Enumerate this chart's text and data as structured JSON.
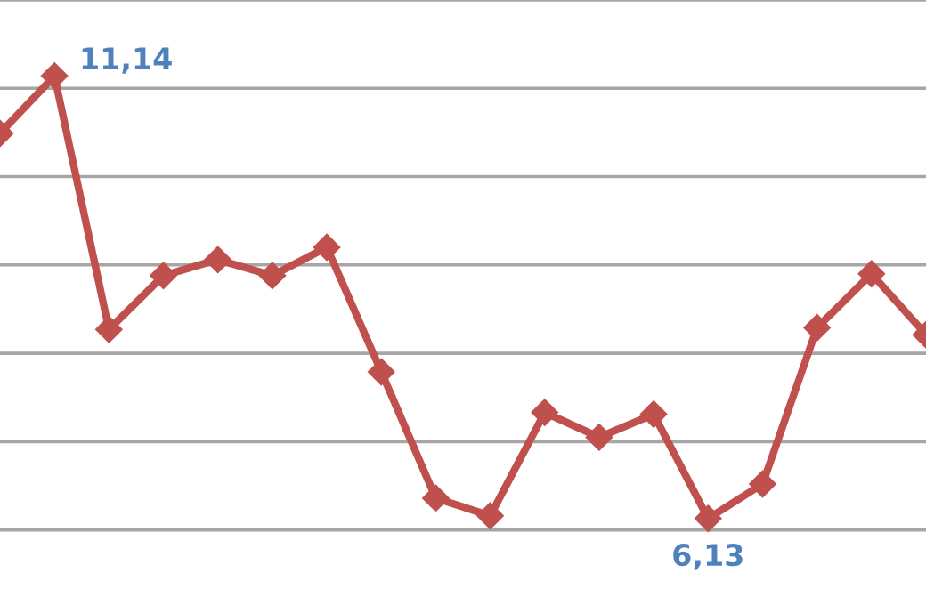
{
  "chart_data": {
    "type": "line",
    "categories": [
      null,
      null,
      null,
      null,
      null,
      null,
      null,
      null,
      null,
      null,
      null,
      null,
      null,
      null,
      null,
      null,
      null,
      null
    ],
    "series": [
      {
        "color": "#c0504d",
        "values": [
          10.49,
          11.14,
          8.27,
          8.88,
          9.06,
          8.88,
          9.2,
          7.79,
          6.36,
          6.16,
          7.33,
          7.05,
          7.31,
          6.13,
          6.52,
          8.29,
          8.9,
          8.21
        ],
        "value_labels": [
          null,
          "11,14",
          null,
          null,
          null,
          null,
          null,
          null,
          null,
          null,
          null,
          null,
          null,
          "6,13",
          null,
          null,
          null,
          null
        ]
      }
    ],
    "ylim": [
      5.15,
      12
    ],
    "yticks": [
      {
        "value": 6,
        "label": null
      },
      {
        "value": 7,
        "label": null
      },
      {
        "value": 8,
        "label": null
      },
      {
        "value": 9,
        "label": null
      },
      {
        "value": 10,
        "label": null
      },
      {
        "value": 11,
        "label": null
      },
      {
        "value": 12,
        "label": null
      }
    ],
    "grid": "y",
    "marker": "diamond",
    "line_style": "solid"
  }
}
